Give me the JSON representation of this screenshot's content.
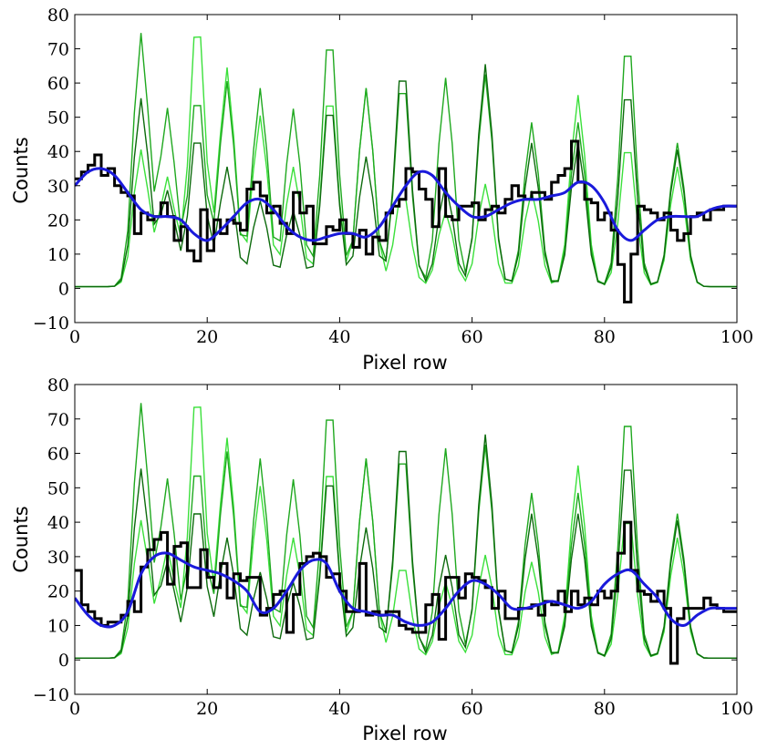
{
  "chart_data": [
    {
      "type": "line",
      "title": "",
      "xlabel": "Pixel row",
      "ylabel": "Counts",
      "xlim": [
        0,
        100
      ],
      "ylim": [
        -10,
        80
      ],
      "xticks": [
        0,
        20,
        40,
        60,
        80,
        100
      ],
      "yticks": [
        -10,
        0,
        10,
        20,
        30,
        40,
        50,
        60,
        70,
        80
      ],
      "grid": false,
      "colors": {
        "spectrum_1": "#0d6b0d",
        "spectrum_2": "#1fa81f",
        "spectrum_3": "#3be03b",
        "data": "#000000",
        "fit": "#1a1adb"
      },
      "peak_rows": [
        10,
        14,
        18.5,
        23,
        28,
        33,
        38.5,
        44,
        49.5,
        56,
        62,
        69,
        76,
        83.5,
        91
      ],
      "series": [
        {
          "name": "spectrum_1",
          "kind": "line",
          "amplitudes": [
            55,
            28,
            46,
            35,
            25,
            22,
            55,
            38,
            66,
            30,
            65,
            42,
            42,
            60,
            40
          ]
        },
        {
          "name": "spectrum_2",
          "kind": "line",
          "amplitudes": [
            74,
            52,
            58,
            60,
            58,
            52,
            76,
            58,
            62,
            61,
            62,
            48,
            48,
            74,
            42
          ]
        },
        {
          "name": "spectrum_3",
          "kind": "line",
          "amplitudes": [
            40,
            32,
            80,
            64,
            50,
            35,
            58,
            58,
            28,
            22,
            30,
            28,
            56,
            43,
            35
          ]
        },
        {
          "name": "data",
          "kind": "step",
          "x": [
            0,
            1,
            2,
            3,
            4,
            5,
            6,
            7,
            8,
            9,
            10,
            11,
            12,
            13,
            14,
            15,
            16,
            17,
            18,
            19,
            20,
            21,
            22,
            23,
            24,
            25,
            26,
            27,
            28,
            29,
            30,
            31,
            32,
            33,
            34,
            35,
            36,
            37,
            38,
            39,
            40,
            41,
            42,
            43,
            44,
            45,
            46,
            47,
            48,
            49,
            50,
            51,
            52,
            53,
            54,
            55,
            56,
            57,
            58,
            59,
            60,
            61,
            62,
            63,
            64,
            65,
            66,
            67,
            68,
            69,
            70,
            71,
            72,
            73,
            74,
            75,
            76,
            77,
            78,
            79,
            80,
            81,
            82,
            83,
            84,
            85,
            86,
            87,
            88,
            89,
            90,
            91,
            92,
            93,
            94,
            95,
            96,
            97,
            98,
            99
          ],
          "y": [
            32,
            34,
            36,
            39,
            33,
            35,
            30,
            28,
            27,
            16,
            22,
            20,
            21,
            25,
            21,
            14,
            18,
            11,
            8,
            23,
            11,
            20,
            16,
            20,
            19,
            17,
            29,
            31,
            27,
            22,
            24,
            19,
            16,
            28,
            22,
            24,
            13,
            13,
            18,
            17,
            20,
            16,
            12,
            17,
            10,
            15,
            14,
            22,
            24,
            26,
            35,
            34,
            29,
            26,
            18,
            35,
            21,
            20,
            24,
            24,
            25,
            20,
            23,
            24,
            22,
            26,
            30,
            27,
            26,
            28,
            28,
            26,
            31,
            33,
            35,
            43,
            31,
            26,
            25,
            20,
            22,
            17,
            7,
            -4,
            10,
            24,
            23,
            22,
            20,
            22,
            17,
            14,
            16,
            21,
            22,
            20,
            23,
            23,
            24,
            24
          ]
        },
        {
          "name": "fit",
          "kind": "line",
          "x": [
            0,
            2,
            4,
            6,
            8,
            10,
            12,
            14,
            16,
            18,
            20,
            22,
            24,
            26,
            28,
            30,
            32,
            34,
            36,
            38,
            40,
            42,
            44,
            46,
            48,
            50,
            52,
            54,
            56,
            58,
            60,
            62,
            64,
            66,
            68,
            70,
            72,
            74,
            76,
            78,
            80,
            82,
            84,
            86,
            88,
            90,
            92,
            94,
            96,
            98,
            100
          ],
          "y": [
            30,
            34,
            35,
            33,
            28,
            23,
            21,
            21,
            20,
            16,
            14,
            17,
            21,
            25,
            26,
            23,
            18,
            15,
            14,
            15,
            16,
            16,
            15,
            18,
            24,
            30,
            34,
            33,
            28,
            24,
            21,
            21,
            23,
            25,
            26,
            26,
            27,
            28,
            31,
            30,
            25,
            17,
            14,
            17,
            20,
            21,
            21,
            21,
            23,
            24,
            24
          ]
        }
      ]
    },
    {
      "type": "line",
      "title": "",
      "xlabel": "Pixel row",
      "ylabel": "Counts",
      "xlim": [
        0,
        100
      ],
      "ylim": [
        -10,
        80
      ],
      "xticks": [
        0,
        20,
        40,
        60,
        80,
        100
      ],
      "yticks": [
        -10,
        0,
        10,
        20,
        30,
        40,
        50,
        60,
        70,
        80
      ],
      "grid": false,
      "colors": {
        "spectrum_1": "#0d6b0d",
        "spectrum_2": "#1fa81f",
        "spectrum_3": "#3be03b",
        "data": "#000000",
        "fit": "#1a1adb"
      },
      "peak_rows": [
        10,
        14,
        18.5,
        23,
        28,
        33,
        38.5,
        44,
        49.5,
        56,
        62,
        69,
        76,
        83.5,
        91
      ],
      "series": [
        {
          "name": "spectrum_1",
          "kind": "line",
          "amplitudes": [
            55,
            28,
            46,
            35,
            25,
            22,
            55,
            38,
            66,
            30,
            65,
            42,
            42,
            60,
            40
          ]
        },
        {
          "name": "spectrum_2",
          "kind": "line",
          "amplitudes": [
            74,
            52,
            58,
            60,
            58,
            52,
            76,
            58,
            62,
            61,
            62,
            48,
            48,
            74,
            42
          ]
        },
        {
          "name": "spectrum_3",
          "kind": "line",
          "amplitudes": [
            40,
            32,
            80,
            64,
            50,
            35,
            58,
            58,
            28,
            22,
            30,
            28,
            56,
            43,
            35
          ]
        },
        {
          "name": "data",
          "kind": "step",
          "x": [
            0,
            1,
            2,
            3,
            4,
            5,
            6,
            7,
            8,
            9,
            10,
            11,
            12,
            13,
            14,
            15,
            16,
            17,
            18,
            19,
            20,
            21,
            22,
            23,
            24,
            25,
            26,
            27,
            28,
            29,
            30,
            31,
            32,
            33,
            34,
            35,
            36,
            37,
            38,
            39,
            40,
            41,
            42,
            43,
            44,
            45,
            46,
            47,
            48,
            49,
            50,
            51,
            52,
            53,
            54,
            55,
            56,
            57,
            58,
            59,
            60,
            61,
            62,
            63,
            64,
            65,
            66,
            67,
            68,
            69,
            70,
            71,
            72,
            73,
            74,
            75,
            76,
            77,
            78,
            79,
            80,
            81,
            82,
            83,
            84,
            85,
            86,
            87,
            88,
            89,
            90,
            91,
            92,
            93,
            94,
            95,
            96,
            97,
            98,
            99
          ],
          "y": [
            26,
            16,
            14,
            12,
            10,
            11,
            11,
            13,
            17,
            14,
            27,
            32,
            35,
            37,
            22,
            33,
            34,
            21,
            21,
            32,
            24,
            21,
            28,
            18,
            25,
            23,
            24,
            24,
            13,
            15,
            19,
            20,
            8,
            19,
            28,
            30,
            31,
            30,
            24,
            25,
            20,
            14,
            14,
            28,
            13,
            14,
            13,
            14,
            14,
            10,
            9,
            8,
            8,
            16,
            19,
            6,
            24,
            24,
            18,
            25,
            24,
            23,
            21,
            15,
            20,
            12,
            12,
            15,
            15,
            16,
            13,
            17,
            16,
            20,
            14,
            20,
            16,
            18,
            16,
            20,
            18,
            20,
            31,
            40,
            26,
            20,
            19,
            17,
            20,
            15,
            -1,
            12,
            15,
            15,
            15,
            18,
            16,
            15,
            14,
            14
          ]
        },
        {
          "name": "fit",
          "kind": "line",
          "x": [
            0,
            2,
            4,
            6,
            8,
            10,
            12,
            14,
            16,
            18,
            20,
            22,
            24,
            26,
            28,
            30,
            32,
            34,
            36,
            38,
            40,
            42,
            44,
            46,
            48,
            50,
            52,
            54,
            56,
            58,
            60,
            62,
            64,
            66,
            68,
            70,
            72,
            74,
            76,
            78,
            80,
            82,
            84,
            86,
            88,
            90,
            92,
            94,
            96,
            98,
            100
          ],
          "y": [
            18,
            13,
            10,
            10,
            14,
            25,
            30,
            31,
            29,
            27,
            26,
            25,
            23,
            20,
            14,
            15,
            20,
            26,
            29,
            28,
            20,
            15,
            14,
            13,
            13,
            11,
            10,
            11,
            15,
            20,
            23,
            22,
            19,
            15,
            15,
            16,
            17,
            16,
            15,
            17,
            22,
            25,
            26,
            22,
            18,
            12,
            10,
            13,
            15,
            15,
            15
          ]
        }
      ]
    }
  ]
}
